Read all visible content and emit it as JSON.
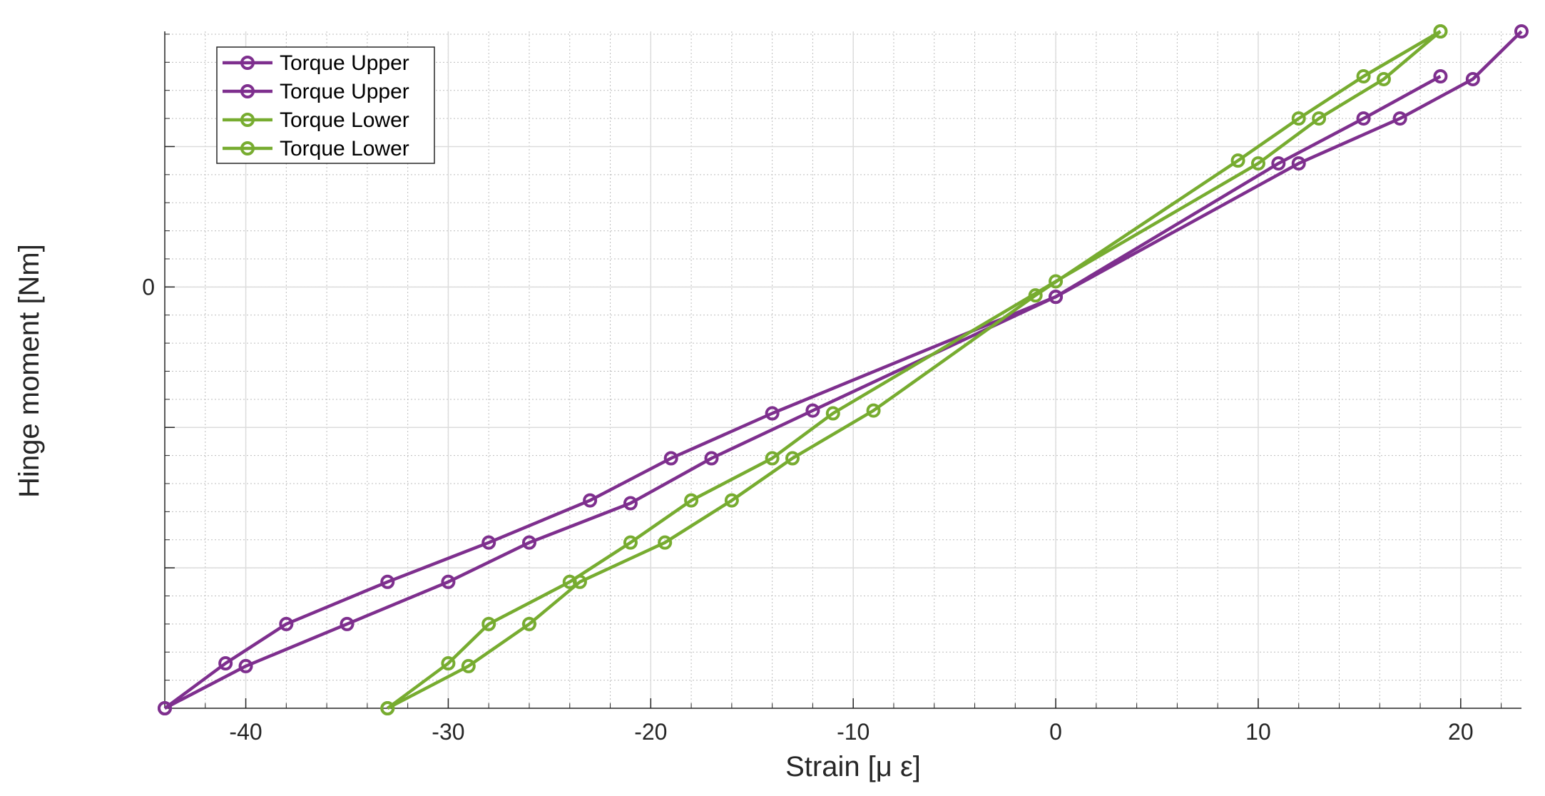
{
  "chart_data": {
    "type": "line",
    "title": "",
    "xlabel": "Strain [μ ε]",
    "ylabel": "Hinge moment [Nm]",
    "xlim": [
      -44,
      23
    ],
    "ylim": [
      -15,
      9.1
    ],
    "x_ticks": [
      -40,
      -30,
      -20,
      -10,
      0,
      10,
      20
    ],
    "x_tick_labels": [
      "-40",
      "-30",
      "-20",
      "-10",
      "0",
      "10",
      "20"
    ],
    "y_ticks": [
      -10,
      -5,
      0,
      5
    ],
    "y_tick_labels": [
      "",
      "",
      "0",
      ""
    ],
    "grid": true,
    "minor_grid": true,
    "legend_position": "top-left",
    "series": [
      {
        "name": "Torque Upper",
        "color": "#7E2F8E",
        "x": [
          -44,
          -40,
          -35,
          -30,
          -26,
          -21,
          -17,
          -12,
          0,
          12,
          17,
          20.6,
          23
        ],
        "y": [
          -15,
          -13.5,
          -12,
          -10.5,
          -9.1,
          -7.7,
          -6.1,
          -4.4,
          -0.35,
          4.4,
          6.0,
          7.4,
          9.1
        ]
      },
      {
        "name": "Torque Upper",
        "color": "#7E2F8E",
        "x": [
          -44,
          -41,
          -38,
          -33,
          -28,
          -23,
          -19,
          -14,
          0,
          11,
          15.2,
          19
        ],
        "y": [
          -15,
          -13.4,
          -12.0,
          -10.5,
          -9.1,
          -7.6,
          -6.1,
          -4.5,
          -0.35,
          4.4,
          6.0,
          7.5
        ]
      },
      {
        "name": "Torque Lower",
        "color": "#77AC30",
        "x": [
          -33,
          -29,
          -26,
          -23.5,
          -19.3,
          -16,
          -13,
          -9,
          -1,
          9,
          12,
          15.2,
          19
        ],
        "y": [
          -15,
          -13.5,
          -12.0,
          -10.5,
          -9.1,
          -7.6,
          -6.1,
          -4.4,
          -0.3,
          4.5,
          6.0,
          7.5,
          9.1
        ]
      },
      {
        "name": "Torque Lower",
        "color": "#77AC30",
        "x": [
          -33,
          -30,
          -28,
          -24,
          -21,
          -18,
          -14,
          -11,
          0,
          10,
          13,
          16.2,
          19
        ],
        "y": [
          -15,
          -13.4,
          -12.0,
          -10.5,
          -9.1,
          -7.6,
          -6.1,
          -4.5,
          0.2,
          4.4,
          6.0,
          7.4,
          9.1
        ]
      }
    ]
  }
}
